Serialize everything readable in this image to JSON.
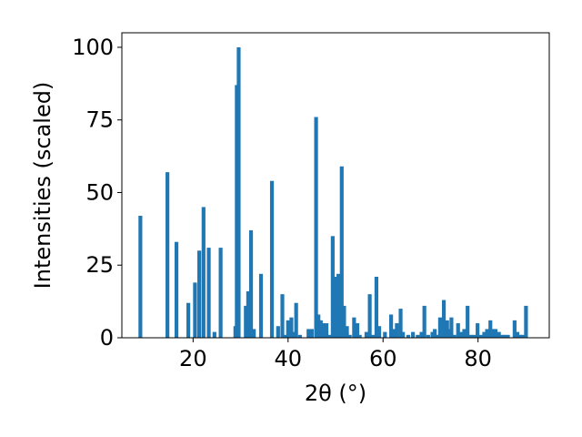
{
  "chart_data": {
    "type": "bar",
    "title": "",
    "xlabel": "2θ (°)",
    "ylabel": "Intensities (scaled)",
    "xlim": [
      5,
      95
    ],
    "ylim": [
      0,
      105
    ],
    "xticks": [
      20,
      40,
      60,
      80
    ],
    "yticks": [
      0,
      25,
      50,
      75,
      100
    ],
    "grid": false,
    "legend": "none",
    "bar_color": "#1f77b4",
    "bar_width": 0.8,
    "series": [
      {
        "x": [
          8.9,
          14.6,
          16.5,
          19.0,
          20.4,
          21.3,
          22.2,
          23.3,
          24.5,
          25.8,
          28.9,
          29.2,
          29.6,
          31.1,
          31.6,
          32.2,
          32.8,
          34.3,
          36.6,
          37.9,
          38.8,
          39.4,
          40.0,
          40.7,
          41.2,
          41.7,
          42.5,
          44.3,
          45.0,
          45.9,
          46.4,
          46.9,
          47.4,
          48.1,
          48.7,
          49.4,
          49.9,
          50.6,
          51.3,
          51.8,
          52.4,
          53.0,
          53.9,
          54.6,
          55.1,
          56.5,
          57.2,
          57.9,
          58.6,
          59.2,
          60.4,
          61.7,
          62.2,
          62.9,
          63.7,
          64.2,
          65.3,
          66.3,
          67.3,
          68.1,
          68.7,
          69.5,
          70.4,
          70.9,
          71.4,
          72.0,
          72.8,
          73.5,
          73.9,
          74.4,
          75.0,
          75.8,
          76.5,
          77.1,
          77.8,
          78.5,
          79.2,
          79.9,
          80.6,
          81.3,
          81.9,
          82.6,
          83.2,
          83.7,
          84.4,
          85.0,
          85.6,
          86.3,
          87.7,
          88.3,
          88.9,
          89.4,
          90.1
        ],
        "values": [
          42,
          57,
          33,
          12,
          19,
          30,
          45,
          31,
          2,
          31,
          4,
          87,
          100,
          11,
          16,
          37,
          3,
          22,
          54,
          4,
          15,
          1,
          6,
          7,
          2,
          12,
          1,
          3,
          3,
          76,
          8,
          6,
          5,
          5,
          1,
          35,
          21,
          22,
          59,
          11,
          4,
          1,
          7,
          5,
          1,
          2,
          15,
          1,
          21,
          4,
          2,
          8,
          3,
          5,
          10,
          2,
          1,
          2,
          1,
          2,
          11,
          1,
          2,
          3,
          1,
          7,
          13,
          6,
          3,
          7,
          1,
          5,
          2,
          3,
          11,
          1,
          1,
          5,
          1,
          2,
          3,
          6,
          3,
          3,
          2,
          1,
          1,
          1,
          6,
          2,
          1,
          1,
          11
        ]
      }
    ]
  }
}
